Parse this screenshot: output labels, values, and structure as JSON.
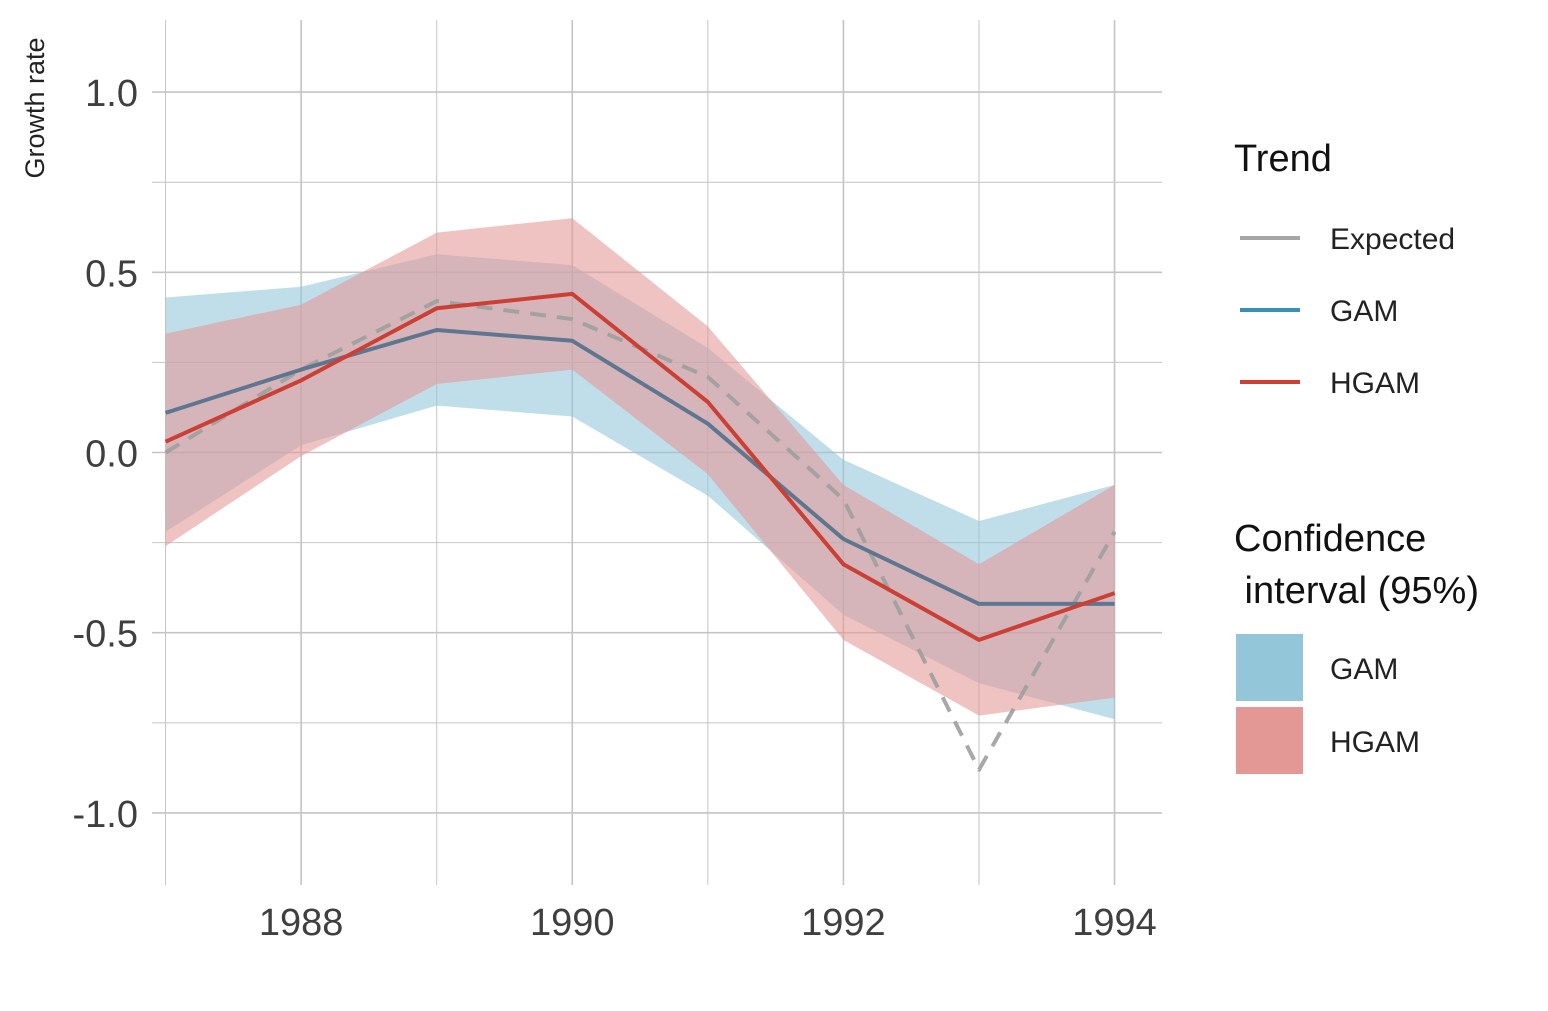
{
  "chart_data": {
    "type": "line",
    "ylabel": "Growth rate",
    "xlabel": "",
    "xlim": [
      1986.9,
      1994.35
    ],
    "ylim": [
      -1.2,
      1.2
    ],
    "x_ticks": [
      1988,
      1990,
      1992,
      1994
    ],
    "x_tick_labels": [
      "1988",
      "1990",
      "1992",
      "1994"
    ],
    "x_minor_gridlines": [
      1987,
      1989,
      1991,
      1993
    ],
    "y_ticks": [
      -1.0,
      -0.5,
      0.0,
      0.5,
      1.0
    ],
    "y_tick_labels": [
      "-1.0",
      "-0.5",
      "0.0",
      "0.5",
      "1.0"
    ],
    "y_minor_gridlines": [
      -0.75,
      -0.25,
      0.25,
      0.75
    ],
    "grid": true,
    "x": [
      1987,
      1988,
      1989,
      1990,
      1991,
      1992,
      1993,
      1994
    ],
    "series": [
      {
        "name": "Expected",
        "style": "dashed",
        "color": "#9e9e9e",
        "values": [
          0.0,
          0.23,
          0.42,
          0.37,
          0.21,
          -0.13,
          -0.88,
          -0.22
        ]
      },
      {
        "name": "GAM",
        "style": "solid",
        "color": "#5e7690",
        "values": [
          0.11,
          0.23,
          0.34,
          0.31,
          0.08,
          -0.24,
          -0.42,
          -0.42
        ]
      },
      {
        "name": "HGAM",
        "style": "solid",
        "color": "#cb3f35",
        "values": [
          0.03,
          0.2,
          0.4,
          0.44,
          0.14,
          -0.31,
          -0.52,
          -0.39
        ]
      }
    ],
    "bands": [
      {
        "name": "GAM",
        "color": "#93c6d9",
        "lower": [
          -0.22,
          0.02,
          0.13,
          0.1,
          -0.12,
          -0.45,
          -0.64,
          -0.74
        ],
        "upper": [
          0.43,
          0.46,
          0.55,
          0.52,
          0.29,
          -0.02,
          -0.19,
          -0.09
        ]
      },
      {
        "name": "HGAM",
        "color": "#e49896",
        "lower": [
          -0.26,
          -0.01,
          0.19,
          0.23,
          -0.06,
          -0.52,
          -0.73,
          -0.68
        ],
        "upper": [
          0.33,
          0.41,
          0.61,
          0.65,
          0.35,
          -0.09,
          -0.31,
          -0.09
        ]
      }
    ],
    "legend": {
      "placement": "right",
      "trend_title": "Trend",
      "trend_items": [
        {
          "label": "Expected",
          "color": "#a5a5a5"
        },
        {
          "label": "GAM",
          "color": "#3b8fb5"
        },
        {
          "label": "HGAM",
          "color": "#cb3f35"
        }
      ],
      "ci_title_line1": "Confidence",
      "ci_title_line2": " interval (95%)",
      "ci_items": [
        {
          "label": "GAM",
          "color": "#93c6d9"
        },
        {
          "label": "HGAM",
          "color": "#e49896"
        }
      ]
    }
  }
}
